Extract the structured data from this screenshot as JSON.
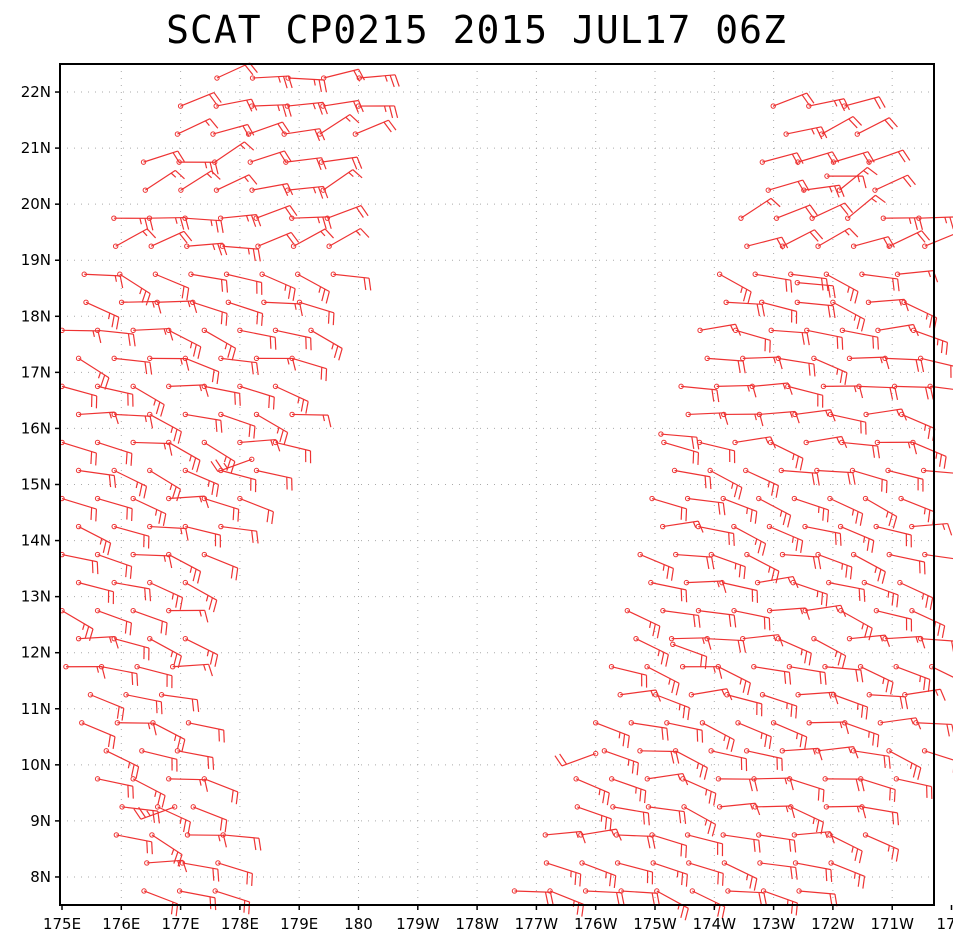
{
  "chart_data": {
    "type": "wind-barb-map",
    "title": "SCAT CP0215 2015 JUL17 06Z",
    "xlabel": "",
    "ylabel": "",
    "xlim": [
      175,
      189
    ],
    "ylim": [
      7.5,
      22.5
    ],
    "grid": true,
    "grid_style": "dotted",
    "barb_color": "#ee3333",
    "x_ticks": [
      {
        "value": 175,
        "label": "175E"
      },
      {
        "value": 176,
        "label": "176E"
      },
      {
        "value": 177,
        "label": "177E"
      },
      {
        "value": 178,
        "label": "178E"
      },
      {
        "value": 179,
        "label": "179E"
      },
      {
        "value": 180,
        "label": "180"
      },
      {
        "value": 181,
        "label": "179W"
      },
      {
        "value": 182,
        "label": "178W"
      },
      {
        "value": 183,
        "label": "177W"
      },
      {
        "value": 184,
        "label": "176W"
      },
      {
        "value": 185,
        "label": "175W"
      },
      {
        "value": 186,
        "label": "174W"
      },
      {
        "value": 187,
        "label": "173W"
      },
      {
        "value": 188,
        "label": "172W"
      },
      {
        "value": 189,
        "label": "171W"
      },
      {
        "value": 190,
        "label": "17"
      }
    ],
    "y_ticks": [
      {
        "value": 8,
        "label": "8N"
      },
      {
        "value": 9,
        "label": "9N"
      },
      {
        "value": 10,
        "label": "10N"
      },
      {
        "value": 11,
        "label": "11N"
      },
      {
        "value": 12,
        "label": "12N"
      },
      {
        "value": 13,
        "label": "13N"
      },
      {
        "value": 14,
        "label": "14N"
      },
      {
        "value": 15,
        "label": "15N"
      },
      {
        "value": 16,
        "label": "16N"
      },
      {
        "value": 17,
        "label": "17N"
      },
      {
        "value": 18,
        "label": "18N"
      },
      {
        "value": 19,
        "label": "19N"
      },
      {
        "value": 20,
        "label": "20N"
      },
      {
        "value": 21,
        "label": "21N"
      },
      {
        "value": 22,
        "label": "22N"
      }
    ],
    "swaths": [
      {
        "name": "west swath",
        "lon_range_at_lat": [
          [
            7.5,
            176.5,
            178.0
          ],
          [
            9.0,
            175.8,
            177.8
          ],
          [
            12.0,
            175.0,
            177.0
          ],
          [
            15.0,
            175.0,
            178.5
          ],
          [
            18.0,
            175.0,
            179.5
          ],
          [
            21.0,
            176.5,
            180.0
          ],
          [
            22.5,
            177.5,
            180.2
          ]
        ],
        "typical_dir_deg": 105,
        "typical_speed_kt": 20
      },
      {
        "name": "east swath",
        "lon_range_at_lat": [
          [
            7.5,
            182.5,
            187.5
          ],
          [
            10.0,
            183.8,
            189.7
          ],
          [
            13.0,
            184.6,
            189.9
          ],
          [
            16.0,
            185.2,
            190.0
          ],
          [
            18.5,
            186.0,
            190.0
          ],
          [
            21.0,
            186.9,
            189.0
          ],
          [
            21.8,
            187.0,
            188.2
          ]
        ],
        "typical_dir_deg": 100,
        "typical_speed_kt": 20
      }
    ],
    "sample_barbs": [
      {
        "lon": 178.2,
        "lat": 15.45,
        "dir_deg": 250,
        "speed_kt": 25
      },
      {
        "lon": 176.9,
        "lat": 9.25,
        "dir_deg": 250,
        "speed_kt": 25
      },
      {
        "lon": 184.0,
        "lat": 10.2,
        "dir_deg": 250,
        "speed_kt": 20
      },
      {
        "lon": 185.3,
        "lat": 12.15,
        "dir_deg": 110,
        "speed_kt": 20
      },
      {
        "lon": 185.1,
        "lat": 15.9,
        "dir_deg": 95,
        "speed_kt": 20
      },
      {
        "lon": 187.4,
        "lat": 18.6,
        "dir_deg": 95,
        "speed_kt": 20
      },
      {
        "lon": 187.9,
        "lat": 20.5,
        "dir_deg": 90,
        "speed_kt": 15
      }
    ]
  }
}
